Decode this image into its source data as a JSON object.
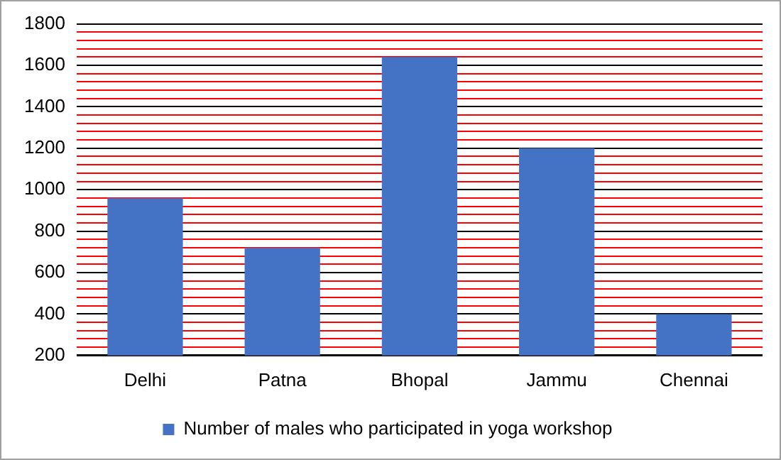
{
  "chart_data": {
    "type": "bar",
    "categories": [
      "Delhi",
      "Patna",
      "Bhopal",
      "Jammu",
      "Chennai"
    ],
    "series": [
      {
        "name": "Number of males who participated in yoga workshop",
        "color": "#4472c4",
        "values": [
          960,
          720,
          1640,
          1200,
          400
        ]
      }
    ],
    "ylim": [
      200,
      1800
    ],
    "yticks": [
      200,
      {
        "value": 240,
        "label": null
      },
      {
        "value": 280,
        "label": null
      },
      {
        "value": 320,
        "label": null
      },
      {
        "value": 360,
        "label": null
      },
      400,
      {
        "value": 440,
        "label": null
      },
      {
        "value": 480,
        "label": null
      },
      {
        "value": 520,
        "label": null
      },
      {
        "value": 560,
        "label": null
      },
      600,
      {
        "value": 640,
        "label": null
      },
      {
        "value": 680,
        "label": null
      },
      {
        "value": 720,
        "label": null
      },
      {
        "value": 760,
        "label": null
      },
      800,
      {
        "value": 840,
        "label": null
      },
      {
        "value": 880,
        "label": null
      },
      {
        "value": 920,
        "label": null
      },
      {
        "value": 960,
        "label": null
      },
      1000,
      {
        "value": 1040,
        "label": null
      },
      {
        "value": 1080,
        "label": null
      },
      {
        "value": 1120,
        "label": null
      },
      {
        "value": 1160,
        "label": null
      },
      1200,
      {
        "value": 1240,
        "label": null
      },
      {
        "value": 1280,
        "label": null
      },
      {
        "value": 1320,
        "label": null
      },
      {
        "value": 1360,
        "label": null
      },
      1400,
      {
        "value": 1440,
        "label": null
      },
      {
        "value": 1480,
        "label": null
      },
      {
        "value": 1520,
        "label": null
      },
      {
        "value": 1560,
        "label": null
      },
      1600,
      {
        "value": 1640,
        "label": null
      },
      {
        "value": 1680,
        "label": null
      },
      {
        "value": 1720,
        "label": null
      },
      {
        "value": 1760,
        "label": null
      },
      1800
    ],
    "grid": "y",
    "legend": "bottom"
  }
}
